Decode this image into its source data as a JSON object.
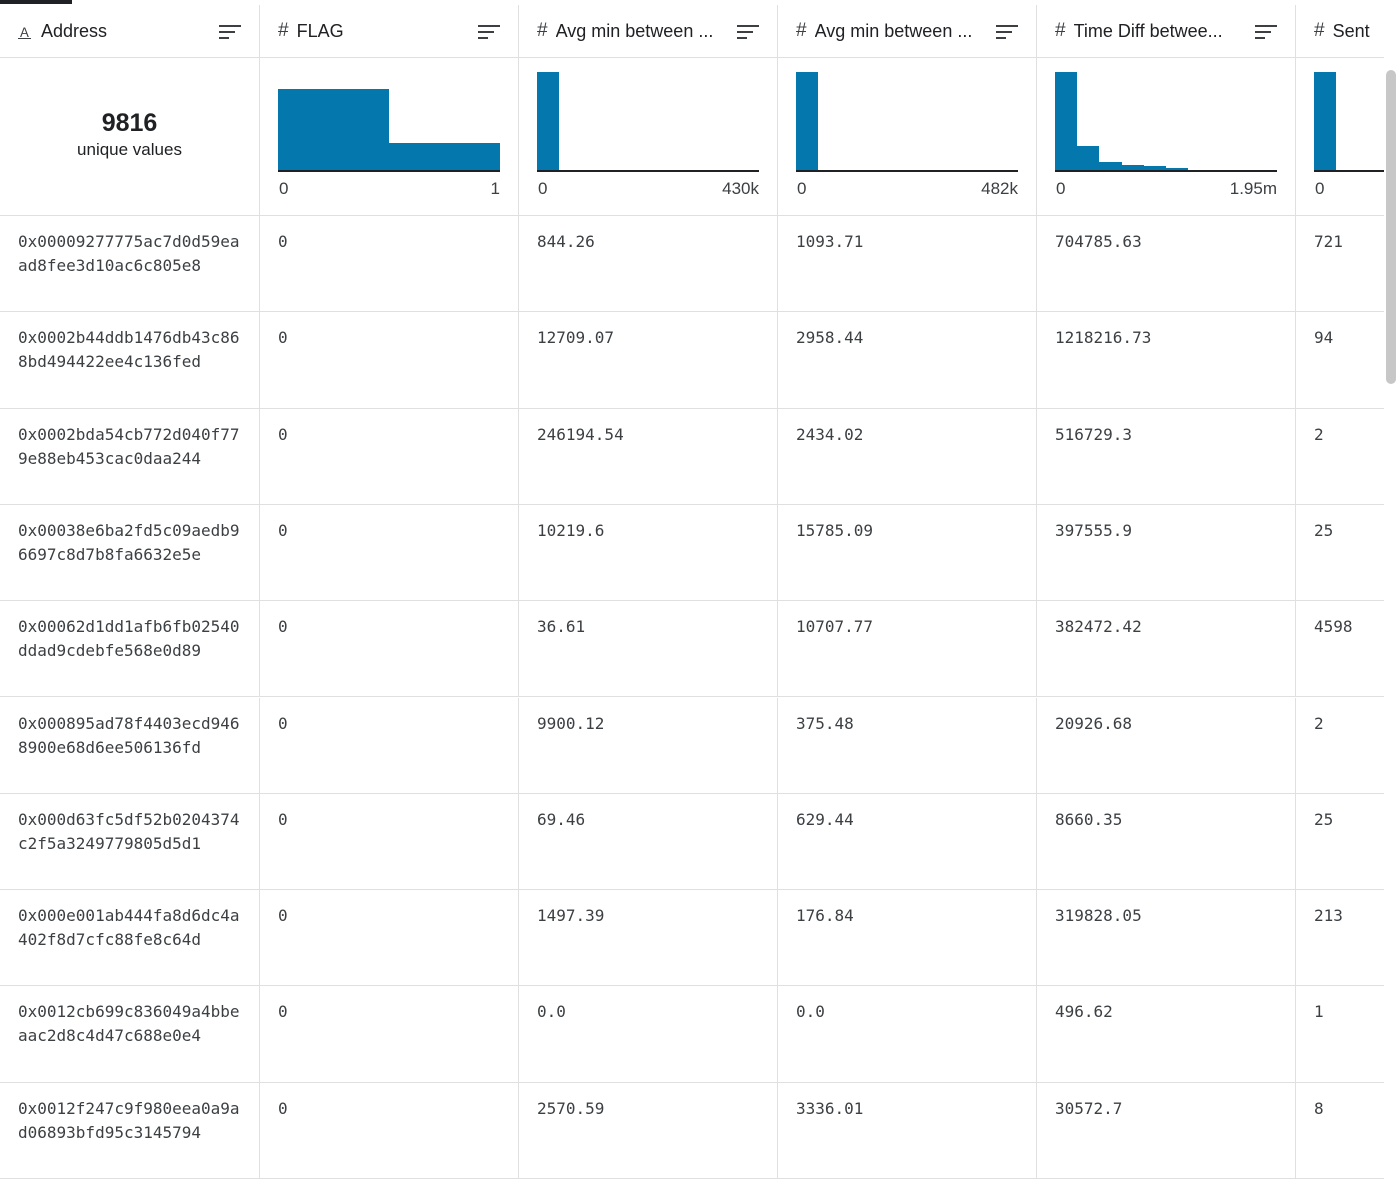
{
  "columns": [
    {
      "type_icon": "Ａ",
      "label": "Address"
    },
    {
      "type_icon": "#",
      "label": "FLAG"
    },
    {
      "type_icon": "#",
      "label": "Avg min between ..."
    },
    {
      "type_icon": "#",
      "label": "Avg min between ..."
    },
    {
      "type_icon": "#",
      "label": "Time Diff betwee..."
    },
    {
      "type_icon": "#",
      "label": "Sent"
    }
  ],
  "summary": {
    "address": {
      "count": "9816",
      "label": "unique values"
    },
    "histograms": [
      {
        "min": "0",
        "max": "1",
        "bars": [
          0.83,
          0.29
        ]
      },
      {
        "min": "0",
        "max": "430k",
        "bars": [
          1.0,
          0.01,
          0.0,
          0.0,
          0.0,
          0.0,
          0.0,
          0.0,
          0.0,
          0.0
        ]
      },
      {
        "min": "0",
        "max": "482k",
        "bars": [
          1.0,
          0.02,
          0.0,
          0.0,
          0.0,
          0.0,
          0.0,
          0.0,
          0.0,
          0.0
        ]
      },
      {
        "min": "0",
        "max": "1.95m",
        "bars": [
          1.0,
          0.26,
          0.1,
          0.07,
          0.06,
          0.04,
          0.0,
          0.0,
          0.0,
          0.0
        ]
      },
      {
        "min": "0",
        "max": "",
        "bars": [
          1.0
        ]
      }
    ]
  },
  "rows": [
    [
      "0x00009277775ac7d0d59eaad8fee3d10ac6c805e8",
      "0",
      "844.26",
      "1093.71",
      "704785.63",
      "721"
    ],
    [
      "0x0002b44ddb1476db43c868bd494422ee4c136fed",
      "0",
      "12709.07",
      "2958.44",
      "1218216.73",
      "94"
    ],
    [
      "0x0002bda54cb772d040f779e88eb453cac0daa244",
      "0",
      "246194.54",
      "2434.02",
      "516729.3",
      "2"
    ],
    [
      "0x00038e6ba2fd5c09aedb96697c8d7b8fa6632e5e",
      "0",
      "10219.6",
      "15785.09",
      "397555.9",
      "25"
    ],
    [
      "0x00062d1dd1afb6fb02540ddad9cdebfe568e0d89",
      "0",
      "36.61",
      "10707.77",
      "382472.42",
      "4598"
    ],
    [
      "0x000895ad78f4403ecd9468900e68d6ee506136fd",
      "0",
      "9900.12",
      "375.48",
      "20926.68",
      "2"
    ],
    [
      "0x000d63fc5df52b0204374c2f5a3249779805d5d1",
      "0",
      "69.46",
      "629.44",
      "8660.35",
      "25"
    ],
    [
      "0x000e001ab444fa8d6dc4a402f8d7cfc88fe8c64d",
      "0",
      "1497.39",
      "176.84",
      "319828.05",
      "213"
    ],
    [
      "0x0012cb699c836049a4bbeaac2d8c4d47c688e0e4",
      "0",
      "0.0",
      "0.0",
      "496.62",
      "1"
    ],
    [
      "0x0012f247c9f980eea0a9ad06893bfd95c3145794",
      "0",
      "2570.59",
      "3336.01",
      "30572.7",
      "8"
    ]
  ]
}
